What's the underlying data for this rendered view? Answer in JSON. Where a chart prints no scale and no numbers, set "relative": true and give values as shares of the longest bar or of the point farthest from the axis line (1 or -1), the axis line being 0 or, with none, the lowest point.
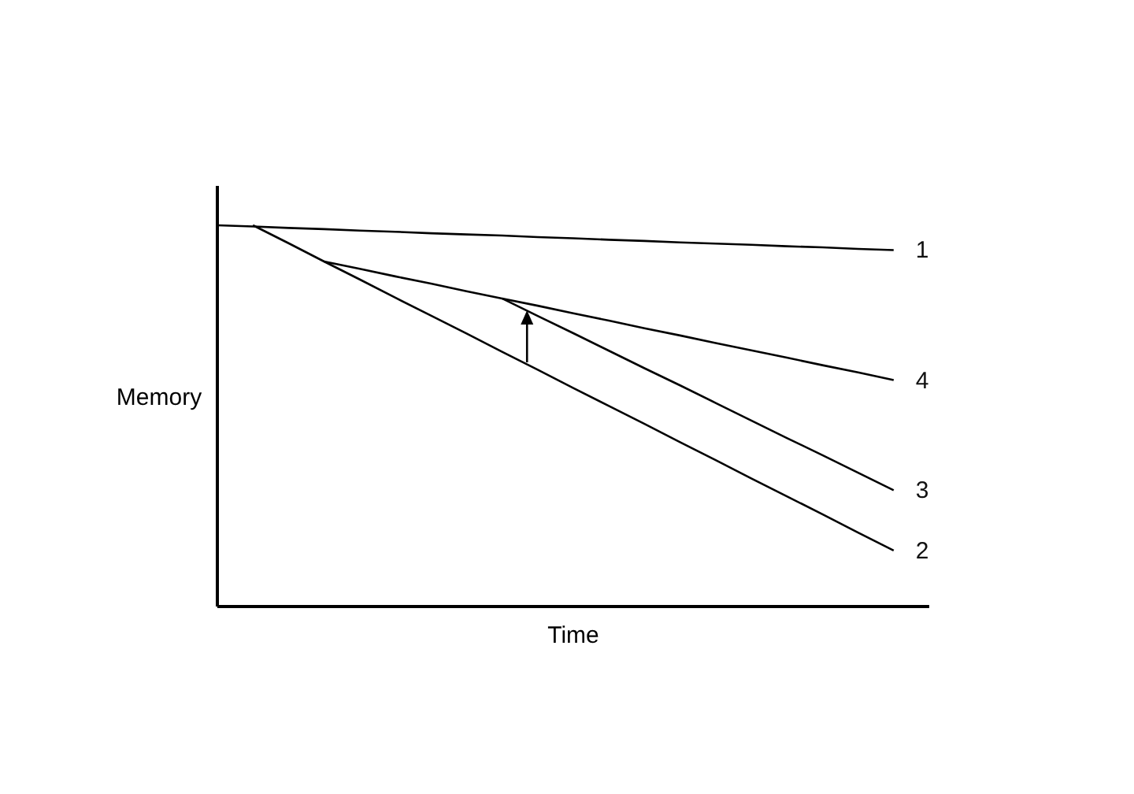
{
  "chart_data": {
    "type": "line",
    "relative": true,
    "xlabel": "Time",
    "ylabel": "Memory",
    "marker": "none",
    "line_style": "solid",
    "categories": [
      null,
      null,
      null,
      null,
      null,
      null,
      null,
      null,
      null,
      null,
      null,
      null,
      null,
      null,
      null,
      null,
      null,
      null,
      null,
      null,
      null
    ],
    "series": [
      {
        "name": "1",
        "color": "#000000",
        "values": [
          1.0,
          0.997,
          0.993,
          0.99,
          0.986,
          0.983,
          0.979,
          0.976,
          0.973,
          0.969,
          0.966,
          0.962,
          0.959,
          0.955,
          0.952,
          0.949,
          0.945,
          0.942,
          0.938,
          0.935,
          null
        ]
      },
      {
        "name": "2",
        "color": "#000000",
        "values": [
          null,
          1.0,
          0.953,
          0.905,
          0.858,
          0.81,
          0.763,
          0.716,
          0.668,
          0.621,
          0.573,
          0.526,
          0.479,
          0.431,
          0.384,
          0.336,
          0.289,
          0.242,
          0.194,
          0.147,
          null
        ]
      },
      {
        "name": "3",
        "color": "#000000",
        "values": [
          null,
          null,
          null,
          null,
          null,
          null,
          null,
          null,
          0.808,
          0.762,
          0.717,
          0.671,
          0.625,
          0.58,
          0.534,
          0.488,
          0.442,
          0.397,
          0.351,
          0.305,
          null
        ]
      },
      {
        "name": "4",
        "color": "#000000",
        "values": [
          null,
          null,
          null,
          0.905,
          0.886,
          0.866,
          0.847,
          0.827,
          0.808,
          0.789,
          0.769,
          0.75,
          0.73,
          0.711,
          0.691,
          0.672,
          0.653,
          0.633,
          0.614,
          0.594,
          null
        ]
      }
    ]
  }
}
